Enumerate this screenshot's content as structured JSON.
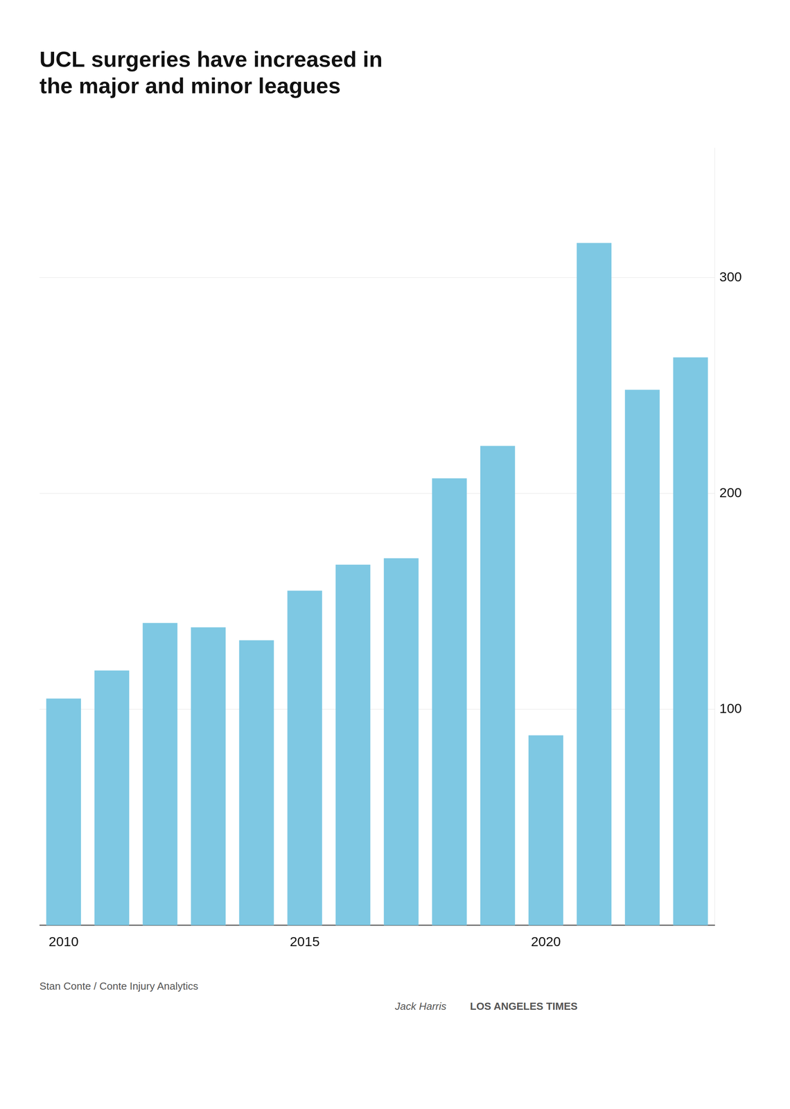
{
  "chart_data": {
    "type": "bar",
    "title": "UCL surgeries have increased in\nthe major and minor leagues",
    "categories": [
      "2010",
      null,
      null,
      null,
      null,
      "2015",
      null,
      null,
      null,
      null,
      "2020",
      null,
      null,
      null
    ],
    "values": [
      105,
      118,
      140,
      138,
      132,
      155,
      167,
      170,
      207,
      222,
      88,
      316,
      248,
      263
    ],
    "color": "#7EC8E3",
    "ylim": [
      0,
      360
    ],
    "yticks": [
      100,
      200,
      300
    ],
    "grid": true,
    "annotations": [
      "Stan Conte / Conte Injury Analytics",
      "Jack Harris",
      "LOS ANGELES TIMES"
    ]
  }
}
